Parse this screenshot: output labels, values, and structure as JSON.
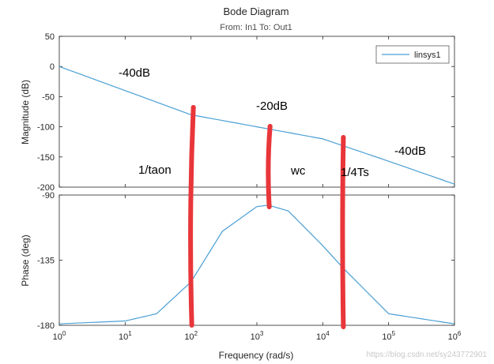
{
  "chart_data": [
    {
      "type": "line",
      "title": "Bode Diagram",
      "subtitle": "From: In1  To: Out1",
      "ylabel": "Magnitude (dB)",
      "xscale": "log",
      "xlim": [
        1,
        1000000
      ],
      "ylim": [
        -200,
        50
      ],
      "yticks": [
        "50",
        "0",
        "-50",
        "-100",
        "-150",
        "-200"
      ],
      "grid": false,
      "legend": {
        "entries": [
          "linsys1"
        ],
        "location": "top-right"
      },
      "series": [
        {
          "name": "linsys1",
          "color": "#4a9fd5",
          "x": [
            1,
            10,
            100,
            1000,
            10000,
            100000,
            1000000
          ],
          "y": [
            0,
            -40,
            -80,
            -100,
            -120,
            -157,
            -195
          ]
        }
      ],
      "annotations": [
        "-40dB",
        "-20dB",
        "-40dB",
        "1/taon",
        "wc",
        "1/4Ts"
      ]
    },
    {
      "type": "line",
      "ylabel": "Phase (deg)",
      "xlabel": "Frequency  (rad/s)",
      "xscale": "log",
      "xlim": [
        1,
        1000000
      ],
      "ylim": [
        -180,
        -90
      ],
      "yticks": [
        "-90",
        "-135",
        "-180"
      ],
      "xticks": [
        "10^0",
        "10^1",
        "10^2",
        "10^3",
        "10^4",
        "10^5",
        "10^6"
      ],
      "grid": false,
      "series": [
        {
          "name": "linsys1",
          "color": "#4a9fd5",
          "x": [
            1,
            10,
            30,
            100,
            300,
            1000,
            1500,
            3000,
            10000,
            20000,
            100000,
            1000000
          ],
          "y": [
            -179,
            -177,
            -172,
            -150,
            -115,
            -98,
            -97,
            -101,
            -125,
            -140,
            -172,
            -179
          ]
        }
      ],
      "markers": [
        {
          "x": 100,
          "color": "#e8363a"
        },
        {
          "x": 1500,
          "color": "#e8363a"
        },
        {
          "x": 20000,
          "color": "#e8363a"
        }
      ]
    }
  ],
  "watermark": "https://blog.csdn.net/sy243772901"
}
